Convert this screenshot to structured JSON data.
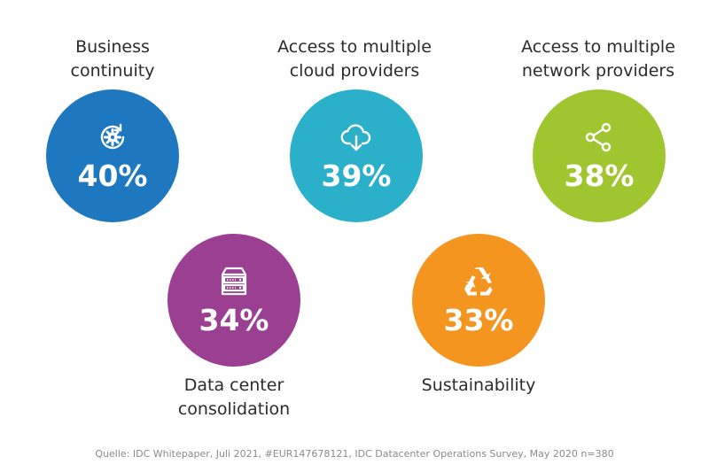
{
  "items": [
    {
      "label_lines": [
        "Business",
        "continuity"
      ],
      "value": "40%",
      "color": "#1e78bf",
      "icon": "gear-refresh-icon"
    },
    {
      "label_lines": [
        "Access to multiple",
        "cloud providers"
      ],
      "value": "39%",
      "color": "#2ab0c9",
      "icon": "cloud-download-icon"
    },
    {
      "label_lines": [
        "Access to multiple",
        "network providers"
      ],
      "value": "38%",
      "color": "#a0c62f",
      "icon": "share-network-icon"
    },
    {
      "label_lines": [
        "Data center",
        "consolidation"
      ],
      "value": "34%",
      "color": "#9b3f92",
      "icon": "server-rack-icon"
    },
    {
      "label_lines": [
        "Sustainability"
      ],
      "value": "33%",
      "color": "#f4951f",
      "icon": "recycle-icon"
    }
  ],
  "source": "Quelle:  IDC Whitepaper, Juli 2021, #EUR147678121, IDC Datacenter Operations Survey, May 2020 n=380"
}
